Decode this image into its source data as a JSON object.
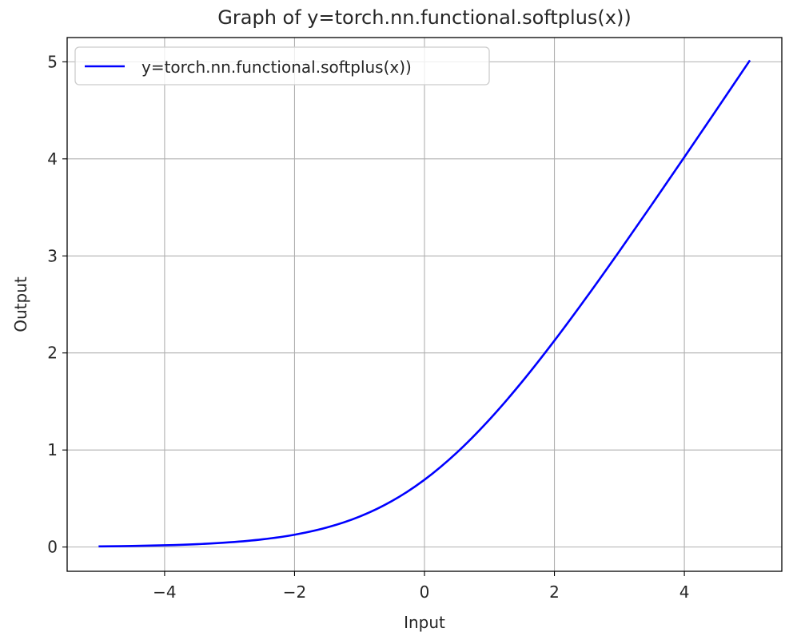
{
  "chart_data": {
    "type": "line",
    "title": "Graph of y=torch.nn.functional.softplus(x))",
    "xlabel": "Input",
    "ylabel": "Output",
    "xlim": [
      -5.5,
      5.5
    ],
    "ylim": [
      -0.25,
      5.25
    ],
    "xticks": [
      -4,
      -2,
      0,
      2,
      4
    ],
    "xtick_labels": [
      "−4",
      "−2",
      "0",
      "2",
      "4"
    ],
    "yticks": [
      0,
      1,
      2,
      3,
      4,
      5
    ],
    "ytick_labels": [
      "0",
      "1",
      "2",
      "3",
      "4",
      "5"
    ],
    "grid": true,
    "legend_position": "top-left",
    "series": [
      {
        "name": "y=torch.nn.functional.softplus(x))",
        "color": "#0000ff",
        "x": [
          -5.0,
          -4.5,
          -4.0,
          -3.5,
          -3.0,
          -2.5,
          -2.0,
          -1.5,
          -1.0,
          -0.5,
          0.0,
          0.5,
          1.0,
          1.5,
          2.0,
          2.5,
          3.0,
          3.5,
          4.0,
          4.5,
          5.0
        ],
        "y": [
          0.0067,
          0.011,
          0.0181,
          0.0298,
          0.0486,
          0.0789,
          0.1269,
          0.2014,
          0.3133,
          0.4741,
          0.6931,
          0.9741,
          1.3133,
          1.7014,
          2.1269,
          2.5789,
          3.0486,
          3.5298,
          4.0181,
          4.511,
          5.0067
        ]
      }
    ]
  }
}
